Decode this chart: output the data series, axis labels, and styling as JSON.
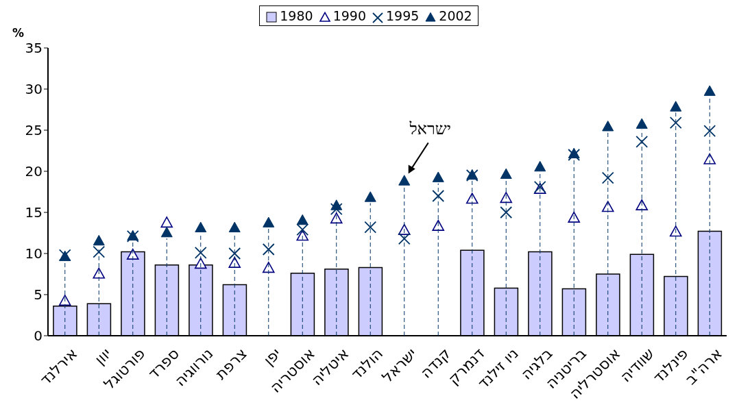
{
  "chart_data": {
    "type": "bar",
    "ylabel": "%",
    "categories": [
      "אירלנד",
      "יוון",
      "פורטוגל",
      "ספרד",
      "נורווגיה",
      "צרפת",
      "יפן",
      "אוסטריה",
      "איטליה",
      "הולנד",
      "ישראל",
      "קנדה",
      "דנמרק",
      "ניו זילנד",
      "בלגיה",
      "בריטניה",
      "אוסטרליה",
      "שוודיה",
      "פינלנד",
      "ארה\"ב"
    ],
    "series": [
      {
        "name": "1980",
        "color": "#ccccff",
        "values": [
          3.6,
          3.9,
          10.2,
          8.6,
          8.6,
          6.2,
          null,
          7.6,
          8.1,
          8.3,
          null,
          null,
          10.4,
          5.8,
          10.2,
          5.7,
          7.5,
          9.9,
          7.2,
          12.7
        ]
      },
      {
        "name": "1990",
        "type": "scatter",
        "marker": "triangle",
        "color": "#000080",
        "values": [
          4.2,
          7.5,
          9.8,
          13.7,
          8.7,
          8.8,
          8.2,
          12.1,
          14.2,
          null,
          12.8,
          13.3,
          16.6,
          16.7,
          17.8,
          14.3,
          15.6,
          15.8,
          12.6,
          21.4
        ]
      },
      {
        "name": "1995",
        "type": "scatter",
        "marker": "cross",
        "color": "#003366",
        "values": [
          9.8,
          10.2,
          12.1,
          null,
          10.1,
          10.0,
          10.5,
          12.9,
          15.4,
          13.2,
          11.8,
          17.0,
          19.5,
          15.0,
          18.1,
          22.0,
          19.2,
          23.6,
          25.9,
          24.9
        ]
      },
      {
        "name": "2002",
        "type": "scatter",
        "marker": "triangle",
        "color": "#003366",
        "values": [
          9.6,
          11.5,
          12.1,
          12.5,
          13.1,
          13.1,
          13.7,
          14.0,
          15.8,
          16.8,
          18.8,
          19.2,
          19.5,
          19.6,
          20.5,
          22.1,
          25.4,
          25.7,
          27.8,
          29.7
        ]
      }
    ],
    "ylim": [
      0,
      35
    ],
    "yticks": [
      0,
      5,
      10,
      15,
      20,
      25,
      30,
      35
    ],
    "grid": "x",
    "legend": "top",
    "annotations": [
      {
        "text": "ישראל",
        "x": "ישראל",
        "y": 18.8
      }
    ]
  }
}
